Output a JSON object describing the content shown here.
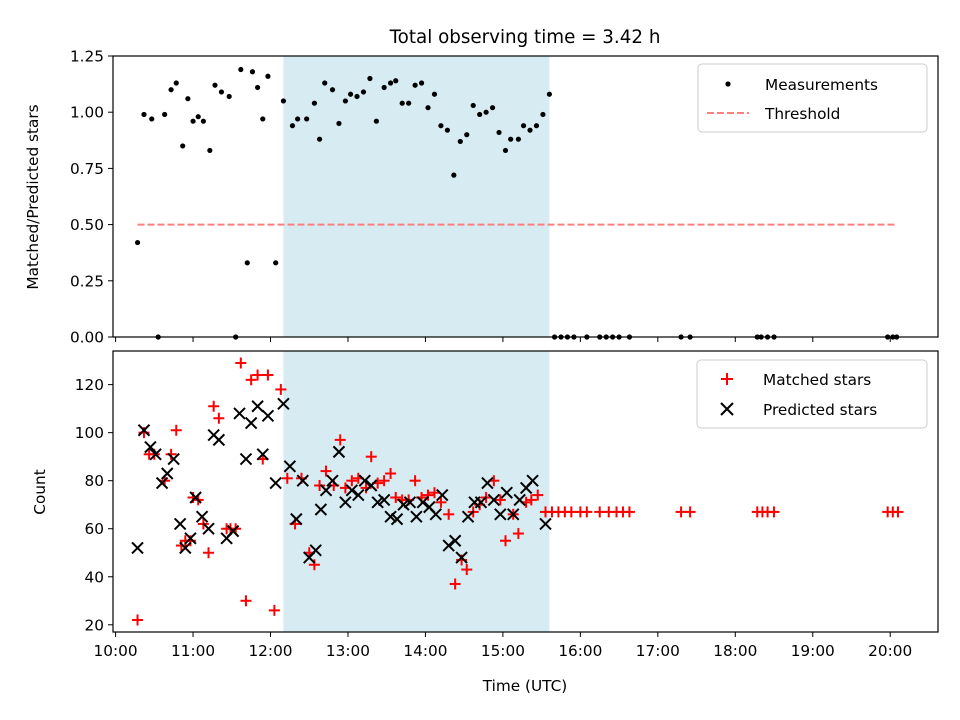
{
  "chart_data": [
    {
      "panel": "top",
      "type": "scatter",
      "title": "Total observing time = 3.42 h",
      "xlabel": "",
      "ylabel": "Matched/Predicted stars",
      "xlim": [
        "09:58",
        "20:37"
      ],
      "ylim": [
        0,
        1.25
      ],
      "yticks": [
        "0.00",
        "0.25",
        "0.50",
        "0.75",
        "1.00",
        "1.25"
      ],
      "grid": false,
      "legend": {
        "placement": "top-right"
      },
      "shaded_interval": {
        "start": "12:10",
        "end": "15:36",
        "color": "#add8e6"
      },
      "series": [
        {
          "name": "Measurements",
          "marker": "dot",
          "color": "#000000",
          "points": [
            [
              "10:17",
              0.42
            ],
            [
              "10:22",
              0.99
            ],
            [
              "10:28",
              0.97
            ],
            [
              "10:33",
              0.0
            ],
            [
              "10:38",
              0.99
            ],
            [
              "10:43",
              1.1
            ],
            [
              "10:47",
              1.13
            ],
            [
              "10:52",
              0.85
            ],
            [
              "10:56",
              1.06
            ],
            [
              "11:00",
              0.96
            ],
            [
              "11:04",
              0.98
            ],
            [
              "11:08",
              0.96
            ],
            [
              "11:13",
              0.83
            ],
            [
              "11:17",
              1.12
            ],
            [
              "11:22",
              1.09
            ],
            [
              "11:28",
              1.07
            ],
            [
              "11:33",
              0.0
            ],
            [
              "11:37",
              1.19
            ],
            [
              "11:42",
              0.33
            ],
            [
              "11:46",
              1.18
            ],
            [
              "11:50",
              1.11
            ],
            [
              "11:54",
              0.97
            ],
            [
              "11:58",
              1.16
            ],
            [
              "12:04",
              0.33
            ],
            [
              "12:10",
              1.05
            ],
            [
              "12:17",
              0.94
            ],
            [
              "12:21",
              0.97
            ],
            [
              "12:28",
              0.97
            ],
            [
              "12:34",
              1.04
            ],
            [
              "12:38",
              0.88
            ],
            [
              "12:42",
              1.13
            ],
            [
              "12:48",
              1.1
            ],
            [
              "12:53",
              0.95
            ],
            [
              "12:58",
              1.05
            ],
            [
              "13:02",
              1.08
            ],
            [
              "13:07",
              1.07
            ],
            [
              "13:12",
              1.09
            ],
            [
              "13:17",
              1.15
            ],
            [
              "13:22",
              0.96
            ],
            [
              "13:28",
              1.11
            ],
            [
              "13:33",
              1.13
            ],
            [
              "13:37",
              1.14
            ],
            [
              "13:42",
              1.04
            ],
            [
              "13:47",
              1.04
            ],
            [
              "13:52",
              1.12
            ],
            [
              "13:57",
              1.13
            ],
            [
              "14:02",
              1.02
            ],
            [
              "14:07",
              1.08
            ],
            [
              "14:12",
              0.94
            ],
            [
              "14:17",
              0.92
            ],
            [
              "14:22",
              0.72
            ],
            [
              "14:27",
              0.87
            ],
            [
              "14:32",
              0.9
            ],
            [
              "14:37",
              1.03
            ],
            [
              "14:42",
              0.99
            ],
            [
              "14:47",
              1.0
            ],
            [
              "14:52",
              1.02
            ],
            [
              "14:57",
              0.91
            ],
            [
              "15:02",
              0.83
            ],
            [
              "15:06",
              0.88
            ],
            [
              "15:12",
              0.88
            ],
            [
              "15:16",
              0.94
            ],
            [
              "15:21",
              0.92
            ],
            [
              "15:26",
              0.94
            ],
            [
              "15:31",
              0.99
            ],
            [
              "15:36",
              1.08
            ],
            [
              "15:40",
              0.0
            ],
            [
              "15:45",
              0.0
            ],
            [
              "15:50",
              0.0
            ],
            [
              "15:55",
              0.0
            ],
            [
              "16:05",
              0.0
            ],
            [
              "16:15",
              0.0
            ],
            [
              "16:20",
              0.0
            ],
            [
              "16:25",
              0.0
            ],
            [
              "16:30",
              0.0
            ],
            [
              "16:38",
              0.0
            ],
            [
              "17:18",
              0.0
            ],
            [
              "17:25",
              0.0
            ],
            [
              "18:17",
              0.0
            ],
            [
              "18:20",
              0.0
            ],
            [
              "18:25",
              0.0
            ],
            [
              "18:30",
              0.0
            ],
            [
              "19:58",
              0.0
            ],
            [
              "20:02",
              0.0
            ],
            [
              "20:05",
              0.0
            ]
          ]
        },
        {
          "name": "Threshold",
          "marker": "dashed-line",
          "color": "#ff7f7f",
          "points": [
            [
              "10:17",
              0.5
            ],
            [
              "20:05",
              0.5
            ]
          ]
        }
      ]
    },
    {
      "panel": "bottom",
      "type": "scatter",
      "title": "",
      "xlabel": "Time (UTC)",
      "ylabel": "Count",
      "xlim": [
        "09:58",
        "20:37"
      ],
      "ylim": [
        17,
        134
      ],
      "yticks": [
        "20",
        "40",
        "60",
        "80",
        "100",
        "120"
      ],
      "xticks": [
        "10:00",
        "11:00",
        "12:00",
        "13:00",
        "14:00",
        "15:00",
        "16:00",
        "17:00",
        "18:00",
        "19:00",
        "20:00"
      ],
      "grid": false,
      "legend": {
        "placement": "top-right"
      },
      "shaded_interval": {
        "start": "12:10",
        "end": "15:36",
        "color": "#add8e6"
      },
      "series": [
        {
          "name": "Matched stars",
          "marker": "plus",
          "color": "#ff0000",
          "points": [
            [
              "10:17",
              22
            ],
            [
              "10:22",
              100
            ],
            [
              "10:26",
              91
            ],
            [
              "10:30",
              91
            ],
            [
              "10:38",
              80
            ],
            [
              "10:43",
              91
            ],
            [
              "10:47",
              101
            ],
            [
              "10:51",
              53
            ],
            [
              "10:54",
              55
            ],
            [
              "10:58",
              55
            ],
            [
              "11:00",
              73
            ],
            [
              "11:04",
              72
            ],
            [
              "11:08",
              62
            ],
            [
              "11:12",
              50
            ],
            [
              "11:16",
              111
            ],
            [
              "11:20",
              106
            ],
            [
              "11:26",
              60
            ],
            [
              "11:29",
              60
            ],
            [
              "11:33",
              60
            ],
            [
              "11:37",
              129
            ],
            [
              "11:41",
              30
            ],
            [
              "11:45",
              122
            ],
            [
              "11:50",
              124
            ],
            [
              "11:54",
              89
            ],
            [
              "11:58",
              124
            ],
            [
              "12:03",
              26
            ],
            [
              "12:08",
              118
            ],
            [
              "12:13",
              81
            ],
            [
              "12:19",
              62
            ],
            [
              "12:24",
              81
            ],
            [
              "12:30",
              50
            ],
            [
              "12:34",
              45
            ],
            [
              "12:38",
              78
            ],
            [
              "12:43",
              84
            ],
            [
              "12:49",
              78
            ],
            [
              "12:54",
              97
            ],
            [
              "12:58",
              77
            ],
            [
              "13:03",
              80
            ],
            [
              "13:08",
              81
            ],
            [
              "13:14",
              77
            ],
            [
              "13:18",
              90
            ],
            [
              "13:23",
              79
            ],
            [
              "13:28",
              80
            ],
            [
              "13:33",
              83
            ],
            [
              "13:37",
              73
            ],
            [
              "13:42",
              72
            ],
            [
              "13:47",
              72
            ],
            [
              "13:52",
              80
            ],
            [
              "13:57",
              73
            ],
            [
              "14:02",
              74
            ],
            [
              "14:07",
              75
            ],
            [
              "14:12",
              71
            ],
            [
              "14:18",
              66
            ],
            [
              "14:23",
              37
            ],
            [
              "14:28",
              47
            ],
            [
              "14:32",
              43
            ],
            [
              "14:37",
              67
            ],
            [
              "14:42",
              70
            ],
            [
              "14:47",
              73
            ],
            [
              "14:53",
              80
            ],
            [
              "14:58",
              72
            ],
            [
              "15:02",
              55
            ],
            [
              "15:08",
              66
            ],
            [
              "15:12",
              58
            ],
            [
              "15:18",
              71
            ],
            [
              "15:22",
              72
            ],
            [
              "15:27",
              74
            ],
            [
              "15:33",
              67
            ],
            [
              "15:38",
              67
            ],
            [
              "15:43",
              67
            ],
            [
              "15:48",
              67
            ],
            [
              "15:53",
              67
            ],
            [
              "16:00",
              67
            ],
            [
              "16:05",
              67
            ],
            [
              "16:15",
              67
            ],
            [
              "16:22",
              67
            ],
            [
              "16:28",
              67
            ],
            [
              "16:33",
              67
            ],
            [
              "16:38",
              67
            ],
            [
              "17:18",
              67
            ],
            [
              "17:25",
              67
            ],
            [
              "18:17",
              67
            ],
            [
              "18:21",
              67
            ],
            [
              "18:25",
              67
            ],
            [
              "18:30",
              67
            ],
            [
              "19:58",
              67
            ],
            [
              "20:02",
              67
            ],
            [
              "20:06",
              67
            ]
          ]
        },
        {
          "name": "Predicted stars",
          "marker": "x",
          "color": "#000000",
          "points": [
            [
              "10:17",
              52
            ],
            [
              "10:22",
              101
            ],
            [
              "10:27",
              94
            ],
            [
              "10:31",
              91
            ],
            [
              "10:36",
              79
            ],
            [
              "10:40",
              83
            ],
            [
              "10:45",
              89
            ],
            [
              "10:50",
              62
            ],
            [
              "10:54",
              52
            ],
            [
              "10:58",
              56
            ],
            [
              "11:02",
              73
            ],
            [
              "11:07",
              65
            ],
            [
              "11:12",
              60
            ],
            [
              "11:16",
              99
            ],
            [
              "11:20",
              97
            ],
            [
              "11:26",
              56
            ],
            [
              "11:31",
              59
            ],
            [
              "11:36",
              108
            ],
            [
              "11:41",
              89
            ],
            [
              "11:45",
              104
            ],
            [
              "11:50",
              111
            ],
            [
              "11:54",
              91
            ],
            [
              "11:58",
              107
            ],
            [
              "12:04",
              79
            ],
            [
              "12:10",
              112
            ],
            [
              "12:15",
              86
            ],
            [
              "12:20",
              64
            ],
            [
              "12:25",
              80
            ],
            [
              "12:30",
              48
            ],
            [
              "12:35",
              51
            ],
            [
              "12:39",
              68
            ],
            [
              "12:43",
              76
            ],
            [
              "12:48",
              80
            ],
            [
              "12:53",
              92
            ],
            [
              "12:58",
              71
            ],
            [
              "13:03",
              76
            ],
            [
              "13:08",
              74
            ],
            [
              "13:13",
              80
            ],
            [
              "13:18",
              78
            ],
            [
              "13:23",
              71
            ],
            [
              "13:28",
              72
            ],
            [
              "13:33",
              65
            ],
            [
              "13:38",
              64
            ],
            [
              "13:43",
              70
            ],
            [
              "13:48",
              71
            ],
            [
              "13:53",
              65
            ],
            [
              "13:58",
              71
            ],
            [
              "14:03",
              69
            ],
            [
              "14:08",
              66
            ],
            [
              "14:13",
              74
            ],
            [
              "14:18",
              53
            ],
            [
              "14:23",
              55
            ],
            [
              "14:28",
              48
            ],
            [
              "14:33",
              65
            ],
            [
              "14:38",
              71
            ],
            [
              "14:43",
              71
            ],
            [
              "14:48",
              79
            ],
            [
              "14:53",
              72
            ],
            [
              "14:58",
              66
            ],
            [
              "15:03",
              75
            ],
            [
              "15:08",
              66
            ],
            [
              "15:13",
              72
            ],
            [
              "15:18",
              77
            ],
            [
              "15:23",
              80
            ],
            [
              "15:33",
              62
            ]
          ]
        }
      ]
    }
  ]
}
